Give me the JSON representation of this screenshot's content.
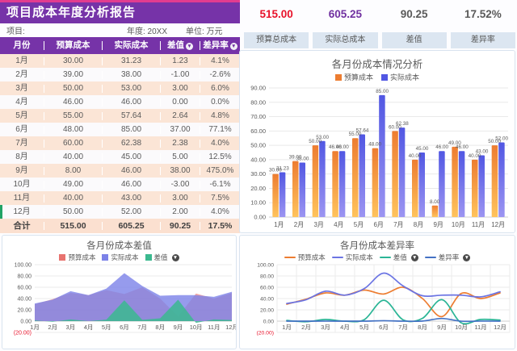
{
  "report": {
    "title": "项目成本年度分析报告",
    "meta": {
      "project": "项目:",
      "year": "年度: 20XX",
      "unit": "单位: 万元"
    }
  },
  "table": {
    "headers": [
      {
        "label": "月份",
        "sortable": false
      },
      {
        "label": "预算成本",
        "sortable": false
      },
      {
        "label": "实际成本",
        "sortable": false
      },
      {
        "label": "差值",
        "sortable": true
      },
      {
        "label": "差异率",
        "sortable": true
      }
    ],
    "rows": [
      [
        "1月",
        "30.00",
        "31.23",
        "1.23",
        "4.1%"
      ],
      [
        "2月",
        "39.00",
        "38.00",
        "-1.00",
        "-2.6%"
      ],
      [
        "3月",
        "50.00",
        "53.00",
        "3.00",
        "6.0%"
      ],
      [
        "4月",
        "46.00",
        "46.00",
        "0.00",
        "0.0%"
      ],
      [
        "5月",
        "55.00",
        "57.64",
        "2.64",
        "4.8%"
      ],
      [
        "6月",
        "48.00",
        "85.00",
        "37.00",
        "77.1%"
      ],
      [
        "7月",
        "60.00",
        "62.38",
        "2.38",
        "4.0%"
      ],
      [
        "8月",
        "40.00",
        "45.00",
        "5.00",
        "12.5%"
      ],
      [
        "9月",
        "8.00",
        "46.00",
        "38.00",
        "475.0%"
      ],
      [
        "10月",
        "49.00",
        "46.00",
        "-3.00",
        "-6.1%"
      ],
      [
        "11月",
        "40.00",
        "43.00",
        "3.00",
        "7.5%"
      ],
      [
        "12月",
        "50.00",
        "52.00",
        "2.00",
        "4.0%"
      ]
    ],
    "total_row": [
      "合计",
      "515.00",
      "605.25",
      "90.25",
      "17.5%"
    ]
  },
  "summary": {
    "items": [
      {
        "value": "515.00",
        "label": "预算总成本",
        "color": "#E8122A"
      },
      {
        "value": "605.25",
        "label": "实际总成本",
        "color": "#7030A0"
      },
      {
        "value": "90.25",
        "label": "差值",
        "color": "#595959"
      },
      {
        "value": "17.52%",
        "label": "差异率",
        "color": "#595959"
      }
    ]
  },
  "chart_data": [
    {
      "type": "bar",
      "title": "各月份成本情况分析",
      "categories": [
        "1月",
        "2月",
        "3月",
        "4月",
        "5月",
        "6月",
        "7月",
        "8月",
        "9月",
        "10月",
        "11月",
        "12月"
      ],
      "series": [
        {
          "name": "预算成本",
          "values": [
            30,
            39,
            50,
            46,
            55,
            48,
            60,
            40,
            8,
            49,
            40,
            50
          ],
          "color": "#ED7D31",
          "color_bottom": "#FFC35C",
          "sortable": false
        },
        {
          "name": "实际成本",
          "values": [
            31.23,
            38,
            53,
            46,
            57.64,
            85,
            62.38,
            45,
            46,
            46,
            43,
            52
          ],
          "color": "#5157E3",
          "color_bottom": "#9C95F2",
          "sortable": false
        }
      ],
      "ylim": [
        0,
        90
      ],
      "ystep": 10,
      "grid": "horizontal",
      "legend_position": "top",
      "data_labels": true
    },
    {
      "type": "area",
      "title": "各月份成本差值",
      "categories": [
        "1月",
        "2月",
        "3月",
        "4月",
        "5月",
        "6月",
        "7月",
        "8月",
        "9月",
        "10月",
        "11月",
        "12月"
      ],
      "series": [
        {
          "name": "预算成本",
          "values": [
            30,
            39,
            50,
            46,
            55,
            48,
            60,
            40,
            8,
            49,
            40,
            50
          ],
          "color": "#E8736F",
          "opacity": 0.62,
          "sortable": false
        },
        {
          "name": "实际成本",
          "values": [
            31.23,
            38,
            53,
            46,
            57.64,
            85,
            62.38,
            45,
            46,
            46,
            43,
            52
          ],
          "color": "#7C82E8",
          "opacity": 0.8,
          "sortable": false
        },
        {
          "name": "差值",
          "values": [
            1.23,
            -1,
            3,
            0,
            2.64,
            37,
            2.38,
            5,
            38,
            -3,
            3,
            2
          ],
          "color": "#3BB98F",
          "opacity": 0.85,
          "sortable": true
        }
      ],
      "ylim": [
        -20,
        100
      ],
      "ystep": 20,
      "grid": "horizontal",
      "legend_position": "top",
      "data_labels": false,
      "negative_tick_color": "#E8122A"
    },
    {
      "type": "line",
      "title": "各月份成本差异率",
      "categories": [
        "1月",
        "2月",
        "3月",
        "4月",
        "5月",
        "6月",
        "7月",
        "8月",
        "9月",
        "10月",
        "11月",
        "12月"
      ],
      "series": [
        {
          "name": "预算成本",
          "values": [
            30,
            39,
            50,
            46,
            55,
            48,
            60,
            40,
            8,
            49,
            40,
            50
          ],
          "color": "#ED7D31",
          "sortable": false
        },
        {
          "name": "实际成本",
          "values": [
            31.23,
            38,
            53,
            46,
            57.64,
            85,
            62.38,
            45,
            46,
            46,
            43,
            52
          ],
          "color": "#6B74E3",
          "sortable": false
        },
        {
          "name": "差值",
          "values": [
            1.23,
            -1,
            3,
            0,
            2.64,
            37,
            2.38,
            5,
            38,
            -3,
            3,
            2
          ],
          "color": "#2BB596",
          "sortable": true
        },
        {
          "name": "差异率",
          "values": [
            0.04,
            -0.03,
            0.06,
            0,
            0.05,
            0.77,
            0.04,
            0.13,
            4.75,
            -0.06,
            0.08,
            0.04
          ],
          "color": "#4472C4",
          "sortable": true
        }
      ],
      "ylim": [
        -20,
        100
      ],
      "ystep": 20,
      "grid": "both",
      "legend_position": "top",
      "data_labels": false,
      "negative_tick_color": "#E8122A"
    }
  ]
}
